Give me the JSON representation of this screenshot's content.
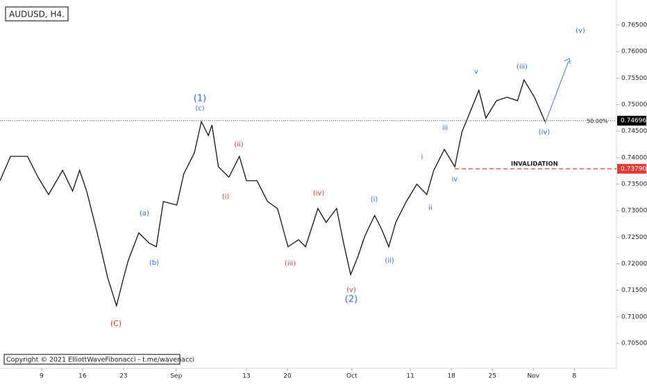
{
  "chart_data": {
    "type": "line",
    "title": "AUDUSD, H4.",
    "copyright": "Copyright © 2021 ElliottWaveFibonacci - t.me/wavenacci",
    "x": [
      1.9,
      3.7,
      6.6,
      8.4,
      10.2,
      12.6,
      14.3,
      15.5,
      16.7,
      18.5,
      20.3,
      21.8,
      23.0,
      23.8,
      25.6,
      27.4,
      28.6,
      29.8,
      32.1,
      33.3,
      35.1,
      36.3,
      37.5,
      38.1,
      39.2,
      41.0,
      42.8,
      44.0,
      45.8,
      47.6,
      49.3,
      51.1,
      52.9,
      54.1,
      56.2,
      57.6,
      59.4,
      60.6,
      61.8,
      63.0,
      64.2,
      65.9,
      67.1,
      68.3,
      69.5,
      71.3,
      73.1,
      74.8,
      76.0,
      77.8,
      79.6,
      80.8,
      82.5,
      83.7,
      84.9,
      86.7,
      88.5,
      90.3,
      91.4,
      93.2,
      95.0
    ],
    "series": [
      {
        "name": "AUDUSD",
        "color": "#111111",
        "values": [
          0.73566,
          0.74024,
          0.74024,
          0.73631,
          0.73304,
          0.73762,
          0.73369,
          0.73762,
          0.73369,
          0.72583,
          0.71732,
          0.71208,
          0.71732,
          0.72059,
          0.72583,
          0.72387,
          0.72321,
          0.73173,
          0.73107,
          0.73697,
          0.7409,
          0.74679,
          0.74417,
          0.74614,
          0.73828,
          0.73631,
          0.74024,
          0.73566,
          0.73566,
          0.73173,
          0.73042,
          0.72321,
          0.72452,
          0.72321,
          0.73042,
          0.7278,
          0.73042,
          0.72387,
          0.71797,
          0.72125,
          0.72518,
          0.72911,
          0.72649,
          0.72321,
          0.7278,
          0.73173,
          0.735,
          0.73304,
          0.73762,
          0.74155,
          0.73828,
          0.74483,
          0.74941,
          0.75269,
          0.74745,
          0.75072,
          0.75138,
          0.75072,
          0.75465,
          0.75138,
          0.74679
        ]
      }
    ],
    "xlim": [
      1.9,
      107.2
    ],
    "xticks": [
      {
        "value": 9,
        "label": "9"
      },
      {
        "value": 16,
        "label": "16"
      },
      {
        "value": 23,
        "label": "23"
      },
      {
        "value": 32,
        "label": "Sep"
      },
      {
        "value": 44,
        "label": "13"
      },
      {
        "value": 51,
        "label": "20"
      },
      {
        "value": 62,
        "label": "Oct"
      },
      {
        "value": 72,
        "label": "11"
      },
      {
        "value": 79,
        "label": "18"
      },
      {
        "value": 86,
        "label": "25"
      },
      {
        "value": 93,
        "label": "Nov"
      },
      {
        "value": 100,
        "label": "8"
      }
    ],
    "ylim": [
      0.7003,
      0.7697
    ],
    "yticks": [
      {
        "value": 0.705,
        "label": "0.70500"
      },
      {
        "value": 0.71,
        "label": "0.71000"
      },
      {
        "value": 0.715,
        "label": "0.71500"
      },
      {
        "value": 0.72,
        "label": "0.72000"
      },
      {
        "value": 0.725,
        "label": "0.72500"
      },
      {
        "value": 0.73,
        "label": "0.73000"
      },
      {
        "value": 0.735,
        "label": "0.73500"
      },
      {
        "value": 0.74,
        "label": "0.74000"
      },
      {
        "value": 0.745,
        "label": "0.74500"
      },
      {
        "value": 0.75,
        "label": "0.75000"
      },
      {
        "value": 0.755,
        "label": "0.75500"
      },
      {
        "value": 0.76,
        "label": "0.76000"
      },
      {
        "value": 0.765,
        "label": "0.76500"
      }
    ],
    "current_price": {
      "value": 0.74696,
      "label": "0.74696",
      "color": "#000000",
      "note": "50.00%"
    },
    "invalidation": {
      "value": 0.7379,
      "label": "0.73790",
      "color": "#e53935",
      "note": "INVALIDATION"
    },
    "annotations": [
      {
        "text": "(1)",
        "color": "#2f6fd6"
      },
      {
        "text": "(c)",
        "color": "#2f6fd6"
      },
      {
        "text": "(a)",
        "color": "#2f6fd6"
      },
      {
        "text": "(b)",
        "color": "#2f6fd6"
      },
      {
        "text": "(C)",
        "color": "#d63c3c"
      },
      {
        "text": "(ii)",
        "color": "#d63c3c"
      },
      {
        "text": "(i)",
        "color": "#d63c3c"
      },
      {
        "text": "(iv)",
        "color": "#d63c3c"
      },
      {
        "text": "(iii)",
        "color": "#d63c3c"
      },
      {
        "text": "(v)",
        "color": "#d63c3c"
      },
      {
        "text": "(2)",
        "color": "#2f6fd6"
      },
      {
        "text": "(i)",
        "color": "#2f6fd6"
      },
      {
        "text": "(ii)",
        "color": "#2f6fd6"
      },
      {
        "text": "i",
        "color": "#2f6fd6"
      },
      {
        "text": "ii",
        "color": "#2f6fd6"
      },
      {
        "text": "iii",
        "color": "#2f6fd6"
      },
      {
        "text": "iv",
        "color": "#2f6fd6"
      },
      {
        "text": "v",
        "color": "#2f6fd6"
      },
      {
        "text": "(iii)",
        "color": "#2f6fd6"
      },
      {
        "text": "(iv)",
        "color": "#2f6fd6"
      },
      {
        "text": "(v)",
        "color": "#2f6fd6"
      }
    ]
  }
}
